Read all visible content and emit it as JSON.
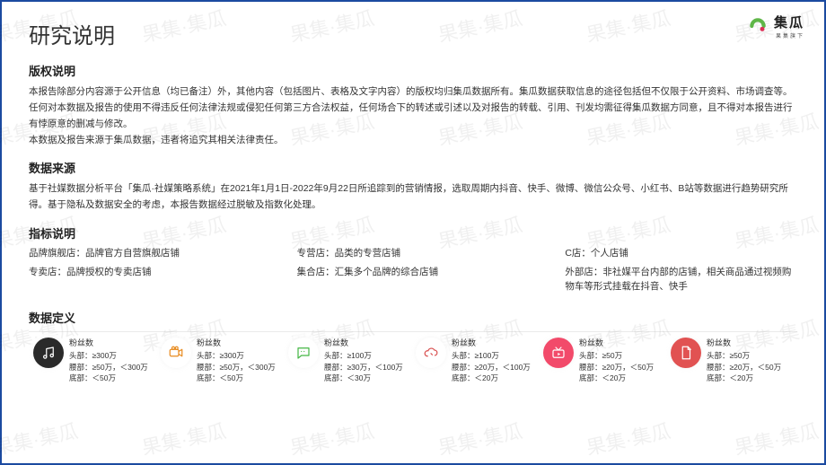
{
  "page_title": "研究说明",
  "logo": {
    "brand": "集瓜",
    "tagline": "果集旗下",
    "arc_color_a": "#5fb648",
    "arc_color_b": "#dd3058"
  },
  "watermark_text": "果集·集瓜",
  "sections": {
    "copyright": {
      "title": "版权说明",
      "paragraphs": [
        "本报告除部分内容源于公开信息（均已备注）外，其他内容（包括图片、表格及文字内容）的版权均归集瓜数据所有。集瓜数据获取信息的途径包括但不仅限于公开资料、市场调查等。",
        "任何对本数据及报告的使用不得违反任何法律法规或侵犯任何第三方合法权益，任何场合下的转述或引述以及对报告的转载、引用、刊发均需征得集瓜数据方同意，且不得对本报告进行有悖原意的删减与修改。",
        "本数据及报告来源于集瓜数据，违者将追究其相关法律责任。"
      ]
    },
    "source": {
      "title": "数据来源",
      "paragraphs": [
        "基于社媒数据分析平台「集瓜·社媒策略系统」在2021年1月1日-2022年9月22日所追踪到的营销情报，选取周期内抖音、快手、微博、微信公众号、小红书、B站等数据进行趋势研究所得。基于隐私及数据安全的考虑，本报告数据经过脱敏及指数化处理。"
      ]
    },
    "indicators": {
      "title": "指标说明",
      "cols": [
        [
          {
            "term": "品牌旗舰店",
            "def": "品牌官方自营旗舰店铺"
          },
          {
            "term": "专卖店",
            "def": "品牌授权的专卖店铺"
          }
        ],
        [
          {
            "term": "专营店",
            "def": "品类的专营店铺"
          },
          {
            "term": "集合店",
            "def": "汇集多个品牌的综合店铺"
          }
        ],
        [
          {
            "term": "C店",
            "def": "个人店铺"
          },
          {
            "term": "外部店",
            "def": "非社媒平台内部的店铺，相关商品通过视频购物车等形式挂载在抖音、快手"
          }
        ]
      ]
    },
    "definitions": {
      "title": "数据定义",
      "line_color": "#888",
      "metrics": [
        {
          "icon": "music",
          "bg": "#2a2a2a",
          "fg": "#ffffff",
          "label": "粉丝数",
          "head": "头部：≥300万",
          "waist": "腰部：≥50万，＜300万",
          "tail": "底部：＜50万"
        },
        {
          "icon": "camera",
          "bg": "#ffffff",
          "fg": "#e88b1f",
          "label": "粉丝数",
          "head": "头部：≥300万",
          "waist": "腰部：≥50万，＜300万",
          "tail": "底部：＜50万"
        },
        {
          "icon": "chat",
          "bg": "#ffffff",
          "fg": "#43b643",
          "label": "粉丝数",
          "head": "头部：≥100万",
          "waist": "腰部：≥30万，＜100万",
          "tail": "底部：＜30万"
        },
        {
          "icon": "cloud",
          "bg": "#ffffff",
          "fg": "#d84d4d",
          "label": "粉丝数",
          "head": "头部：≥100万",
          "waist": "腰部：≥20万，＜100万",
          "tail": "底部：＜20万"
        },
        {
          "icon": "tv",
          "bg": "#f24a6a",
          "fg": "#ffffff",
          "label": "粉丝数",
          "head": "头部：≥50万",
          "waist": "腰部：≥20万，＜50万",
          "tail": "底部：＜20万"
        },
        {
          "icon": "note",
          "bg": "#e15252",
          "fg": "#ffffff",
          "label": "粉丝数",
          "head": "头部：≥50万",
          "waist": "腰部：≥20万，＜50万",
          "tail": "底部：＜20万"
        }
      ]
    }
  }
}
